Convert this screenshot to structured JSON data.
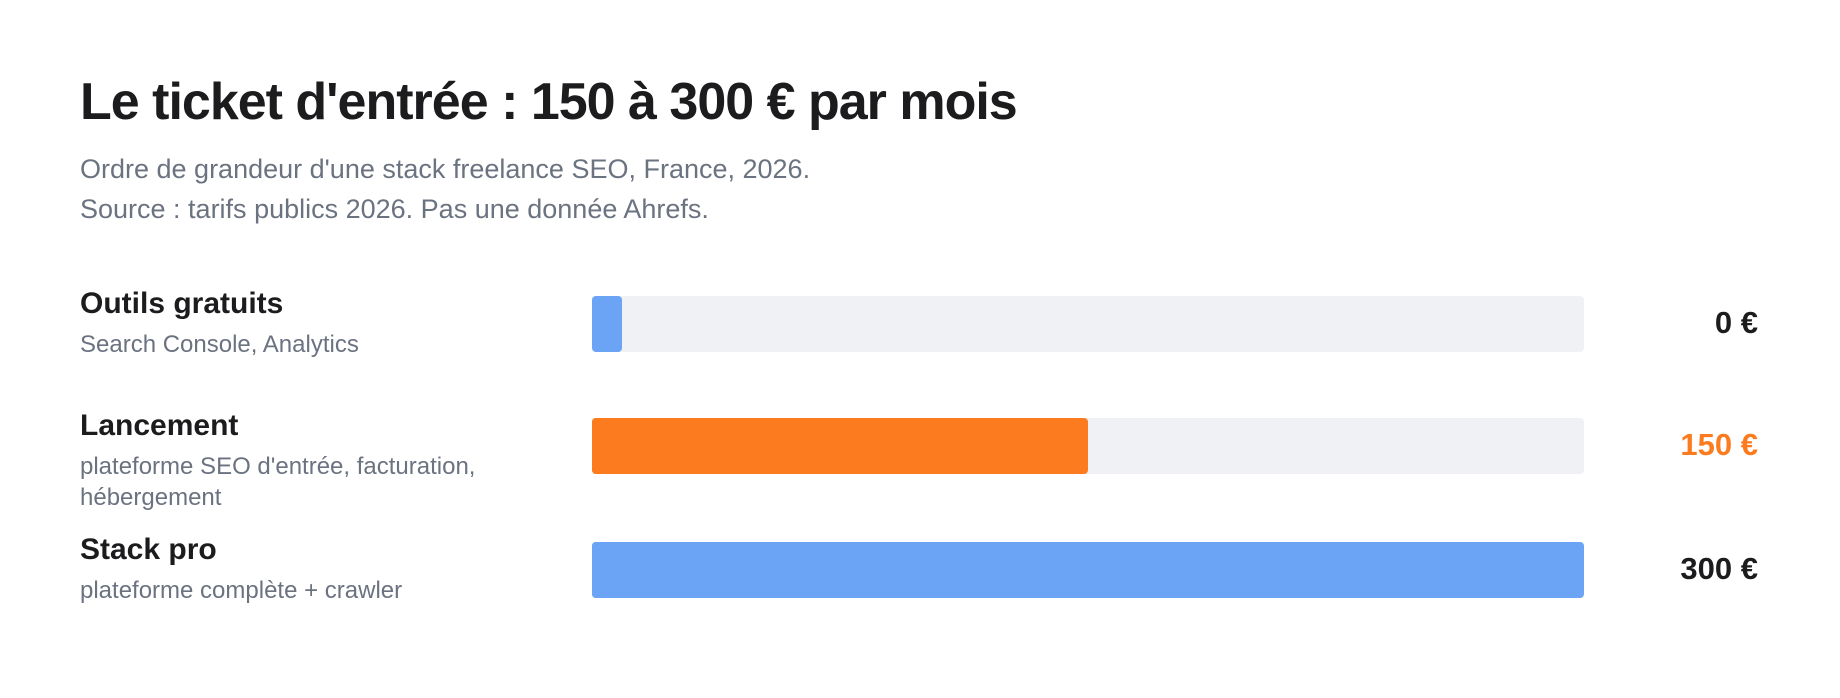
{
  "chart_data": {
    "type": "bar",
    "orientation": "horizontal",
    "title": "Le ticket d'entrée : 150 à 300 € par mois",
    "subtitle": "Ordre de grandeur d'une stack freelance SEO, France, 2026.",
    "source": "Source : tarifs publics 2026. Pas une donnée Ahrefs.",
    "categories": [
      "Outils gratuits",
      "Lancement",
      "Stack pro"
    ],
    "descriptions": [
      "Search Console, Analytics",
      "plateforme SEO d'entrée, facturation, hébergement",
      "plateforme complète + crawler"
    ],
    "values": [
      0,
      150,
      300
    ],
    "value_labels": [
      "0 €",
      "150 €",
      "300 €"
    ],
    "colors": [
      "#6ba3f5",
      "#fd7b1f",
      "#6ba3f5"
    ],
    "value_label_colors": [
      "#1c1c1e",
      "#fd7b1f",
      "#1c1c1e"
    ],
    "track_color": "#f0f1f4",
    "xlim": [
      0,
      300
    ]
  }
}
